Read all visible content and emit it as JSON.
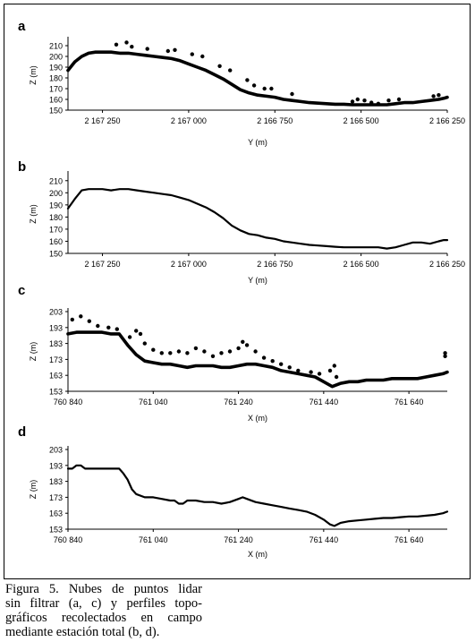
{
  "chart_data": [
    {
      "panel": "a",
      "type": "scatter",
      "xlabel": "Y (m)",
      "ylabel": "Z (m)",
      "xlim": [
        2167350,
        2166250
      ],
      "ylim": [
        150,
        215
      ],
      "xticks": [
        2167250,
        2167000,
        2166750,
        2166500,
        2166250
      ],
      "xtick_labels": [
        "2 167 250",
        "2 167 000",
        "2 166 750",
        "2 166 500",
        "2 166 250"
      ],
      "yticks": [
        150,
        160,
        170,
        180,
        190,
        200,
        210
      ],
      "ytick_labels": [
        "150",
        "160",
        "170",
        "180",
        "190",
        "200",
        "210"
      ],
      "x": [
        2167350,
        2167330,
        2167310,
        2167290,
        2167270,
        2167250,
        2167225,
        2167200,
        2167175,
        2167150,
        2167125,
        2167100,
        2167075,
        2167050,
        2167025,
        2167000,
        2166975,
        2166950,
        2166925,
        2166900,
        2166875,
        2166850,
        2166825,
        2166800,
        2166775,
        2166750,
        2166725,
        2166700,
        2166675,
        2166650,
        2166625,
        2166600,
        2166575,
        2166550,
        2166525,
        2166500,
        2166475,
        2166450,
        2166425,
        2166400,
        2166375,
        2166350,
        2166325,
        2166300,
        2166275,
        2166260,
        2166250
      ],
      "y": [
        187,
        195,
        200,
        203,
        204,
        204,
        204,
        203,
        203,
        202,
        201,
        200,
        199,
        198,
        196,
        193,
        190,
        187,
        183,
        179,
        174,
        169,
        166,
        164,
        163,
        162,
        160,
        159,
        158,
        157,
        156.5,
        156,
        155.5,
        155.5,
        155,
        155,
        155,
        155,
        155,
        156,
        157,
        157,
        158,
        159,
        160,
        161,
        162
      ],
      "scatter_points": [
        [
          2167210,
          211
        ],
        [
          2167180,
          213
        ],
        [
          2167165,
          209
        ],
        [
          2167120,
          207
        ],
        [
          2167060,
          205
        ],
        [
          2167040,
          206
        ],
        [
          2166990,
          202
        ],
        [
          2166960,
          200
        ],
        [
          2166910,
          191
        ],
        [
          2166880,
          187
        ],
        [
          2166830,
          178
        ],
        [
          2166810,
          173
        ],
        [
          2166780,
          170
        ],
        [
          2166760,
          170
        ],
        [
          2166700,
          165
        ],
        [
          2166525,
          158
        ],
        [
          2166510,
          160
        ],
        [
          2166490,
          159
        ],
        [
          2166470,
          157
        ],
        [
          2166450,
          156
        ],
        [
          2166420,
          159
        ],
        [
          2166390,
          160
        ],
        [
          2166290,
          163
        ],
        [
          2166275,
          164
        ]
      ]
    },
    {
      "panel": "b",
      "type": "line",
      "xlabel": "Y (m)",
      "ylabel": "Z (m)",
      "xlim": [
        2167350,
        2166250
      ],
      "ylim": [
        150,
        215
      ],
      "xticks": [
        2167250,
        2167000,
        2166750,
        2166500,
        2166250
      ],
      "xtick_labels": [
        "2 167 250",
        "2 167 000",
        "2 166 750",
        "2 166 500",
        "2 166 250"
      ],
      "yticks": [
        150,
        160,
        170,
        180,
        190,
        200,
        210
      ],
      "ytick_labels": [
        "150",
        "160",
        "170",
        "180",
        "190",
        "200",
        "210"
      ],
      "x": [
        2167350,
        2167330,
        2167310,
        2167290,
        2167270,
        2167250,
        2167225,
        2167200,
        2167175,
        2167150,
        2167125,
        2167100,
        2167075,
        2167050,
        2167025,
        2167000,
        2166975,
        2166950,
        2166925,
        2166900,
        2166875,
        2166850,
        2166825,
        2166800,
        2166775,
        2166750,
        2166725,
        2166700,
        2166675,
        2166650,
        2166625,
        2166600,
        2166575,
        2166550,
        2166525,
        2166500,
        2166475,
        2166450,
        2166425,
        2166400,
        2166375,
        2166350,
        2166325,
        2166300,
        2166275,
        2166260,
        2166250
      ],
      "y": [
        187,
        195,
        202,
        203,
        203,
        203,
        202,
        203,
        203,
        202,
        201,
        200,
        199,
        198,
        196,
        194,
        191,
        188,
        184,
        179,
        173,
        169,
        166,
        165,
        163,
        162,
        160,
        159,
        158,
        157,
        156.5,
        156,
        155.5,
        155,
        155,
        155,
        155,
        155,
        154,
        155,
        157,
        159,
        159,
        158,
        160,
        161,
        161
      ]
    },
    {
      "panel": "c",
      "type": "scatter",
      "xlabel": "X (m)",
      "ylabel": "Z (m)",
      "xlim": [
        760840,
        761730
      ],
      "ylim": [
        153,
        203
      ],
      "xticks": [
        760840,
        761040,
        761240,
        761440,
        761640
      ],
      "xtick_labels": [
        "760 840",
        "761 040",
        "761 240",
        "761 440",
        "761 640"
      ],
      "yticks": [
        153,
        163,
        173,
        183,
        193,
        203
      ],
      "ytick_labels": [
        "153",
        "163",
        "173",
        "183",
        "193",
        "203"
      ],
      "x": [
        760840,
        760860,
        760880,
        760900,
        760920,
        760940,
        760960,
        760980,
        761000,
        761020,
        761040,
        761060,
        761080,
        761100,
        761120,
        761140,
        761160,
        761180,
        761200,
        761220,
        761240,
        761260,
        761280,
        761300,
        761320,
        761340,
        761360,
        761380,
        761400,
        761420,
        761440,
        761460,
        761480,
        761500,
        761520,
        761540,
        761560,
        761580,
        761600,
        761620,
        761640,
        761660,
        761680,
        761700,
        761720,
        761730
      ],
      "y": [
        189,
        190,
        190,
        190,
        190,
        189,
        189,
        182,
        176,
        172,
        171,
        170,
        170,
        169,
        168,
        169,
        169,
        169,
        168,
        168,
        169,
        170,
        170,
        169,
        168,
        166,
        165,
        164,
        163,
        162,
        159,
        156,
        158,
        159,
        159,
        160,
        160,
        160,
        161,
        161,
        161,
        161,
        162,
        163,
        164,
        165
      ],
      "scatter_points": [
        [
          760850,
          198
        ],
        [
          760870,
          200
        ],
        [
          760890,
          197
        ],
        [
          760910,
          194
        ],
        [
          760935,
          193
        ],
        [
          760955,
          192
        ],
        [
          760985,
          187
        ],
        [
          761000,
          191
        ],
        [
          761010,
          189
        ],
        [
          761020,
          183
        ],
        [
          761040,
          179
        ],
        [
          761060,
          177
        ],
        [
          761080,
          177
        ],
        [
          761100,
          178
        ],
        [
          761120,
          177
        ],
        [
          761140,
          180
        ],
        [
          761160,
          178
        ],
        [
          761180,
          175
        ],
        [
          761200,
          177
        ],
        [
          761220,
          178
        ],
        [
          761240,
          180
        ],
        [
          761250,
          184
        ],
        [
          761260,
          182
        ],
        [
          761280,
          178
        ],
        [
          761300,
          174
        ],
        [
          761320,
          172
        ],
        [
          761340,
          170
        ],
        [
          761360,
          168
        ],
        [
          761380,
          166
        ],
        [
          761410,
          165
        ],
        [
          761430,
          164
        ],
        [
          761455,
          166
        ],
        [
          761465,
          169
        ],
        [
          761470,
          162
        ],
        [
          761725,
          175
        ],
        [
          761725,
          177
        ]
      ]
    },
    {
      "panel": "d",
      "type": "line",
      "xlabel": "X (m)",
      "ylabel": "Z (m)",
      "xlim": [
        760840,
        761730
      ],
      "ylim": [
        153,
        203
      ],
      "xticks": [
        760840,
        761040,
        761240,
        761440,
        761640
      ],
      "xtick_labels": [
        "760 840",
        "761 040",
        "761 240",
        "761 440",
        "761 640"
      ],
      "yticks": [
        153,
        163,
        173,
        183,
        193,
        203
      ],
      "ytick_labels": [
        "153",
        "163",
        "173",
        "183",
        "193",
        "203"
      ],
      "x": [
        760840,
        760850,
        760860,
        760870,
        760880,
        760900,
        760920,
        760940,
        760960,
        760970,
        760980,
        760990,
        761000,
        761020,
        761040,
        761060,
        761080,
        761090,
        761100,
        761110,
        761120,
        761140,
        761160,
        761180,
        761200,
        761220,
        761240,
        761250,
        761260,
        761280,
        761300,
        761320,
        761340,
        761360,
        761380,
        761400,
        761420,
        761440,
        761455,
        761465,
        761480,
        761500,
        761520,
        761540,
        761560,
        761580,
        761600,
        761620,
        761640,
        761660,
        761680,
        761700,
        761720,
        761730
      ],
      "y": [
        191,
        191,
        193,
        193,
        191,
        191,
        191,
        191,
        191,
        188,
        184,
        178,
        175,
        173,
        173,
        172,
        171,
        171,
        169,
        169,
        171,
        171,
        170,
        170,
        169,
        170,
        172,
        173,
        172,
        170,
        169,
        168,
        167,
        166,
        165,
        164,
        162,
        159,
        156,
        155,
        157,
        158,
        158.5,
        159,
        159.5,
        160,
        160,
        160.5,
        161,
        161,
        161.5,
        162,
        163,
        164
      ]
    }
  ],
  "caption": {
    "lines": [
      "Figura 5. Nubes de puntos lidar",
      "sin filtrar (a, c) y perfiles topo-",
      "gráficos recolectados en campo",
      "mediante estación total (b, d)."
    ]
  }
}
